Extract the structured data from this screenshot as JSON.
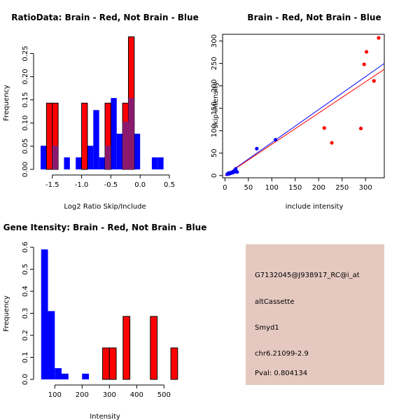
{
  "colors": {
    "brain": "#ff0000",
    "not_brain": "#0000ff",
    "overlap": "#8b1a6e",
    "info_bg": "#e5c9c1",
    "pval": "#8b0000"
  },
  "chart_data": [
    {
      "id": "ratio_hist",
      "type": "bar",
      "title": "RatioData: Brain - Red, Not Brain - Blue",
      "xlabel": "Log2 Ratio Skip/Include",
      "ylabel": "Frequency",
      "xlim": [
        -1.7,
        0.5
      ],
      "ylim": [
        0,
        0.29
      ],
      "xticks": [
        "-1.5",
        "-1.0",
        "-0.5",
        "0.0",
        "0.5"
      ],
      "xtick_values": [
        -1.5,
        -1.0,
        -0.5,
        0.0,
        0.5
      ],
      "yticks": [
        "0.00",
        "0.05",
        "0.10",
        "0.15",
        "0.20",
        "0.25"
      ],
      "ytick_values": [
        0,
        0.05,
        0.1,
        0.15,
        0.2,
        0.25
      ],
      "bin_width": 0.1,
      "series": [
        {
          "name": "Not Brain",
          "color": "blue",
          "bins": [
            [
              -1.7,
              0.051
            ],
            [
              -1.5,
              0.051
            ],
            [
              -1.3,
              0.026
            ],
            [
              -1.1,
              0.026
            ],
            [
              -0.9,
              0.051
            ],
            [
              -0.8,
              0.128
            ],
            [
              -0.7,
              0.026
            ],
            [
              -0.6,
              0.051
            ],
            [
              -0.5,
              0.154
            ],
            [
              -0.4,
              0.077
            ],
            [
              -0.3,
              0.103
            ],
            [
              -0.2,
              0.154
            ],
            [
              -0.1,
              0.077
            ],
            [
              0.2,
              0.026
            ],
            [
              0.3,
              0.026
            ]
          ]
        },
        {
          "name": "Brain",
          "color": "red",
          "bins": [
            [
              -1.6,
              0.143
            ],
            [
              -1.5,
              0.143
            ],
            [
              -1.0,
              0.143
            ],
            [
              -0.6,
              0.143
            ],
            [
              -0.3,
              0.143
            ],
            [
              -0.2,
              0.286
            ]
          ]
        }
      ]
    },
    {
      "id": "scatter",
      "type": "scatter",
      "title": "Brain - Red, Not Brain - Blue",
      "xlabel": "include intensity",
      "ylabel": "skip intensity",
      "xlim": [
        -5,
        340
      ],
      "ylim": [
        -5,
        315
      ],
      "xticks": [
        "0",
        "50",
        "100",
        "150",
        "200",
        "250",
        "300"
      ],
      "xtick_values": [
        0,
        50,
        100,
        150,
        200,
        250,
        300
      ],
      "yticks": [
        "0",
        "50",
        "100",
        "150",
        "200",
        "250",
        "300"
      ],
      "ytick_values": [
        0,
        50,
        100,
        150,
        200,
        250,
        300
      ],
      "series": [
        {
          "name": "Not Brain",
          "color": "blue",
          "points": [
            [
              5,
              3
            ],
            [
              7,
              5
            ],
            [
              9,
              4
            ],
            [
              10,
              6
            ],
            [
              12,
              5
            ],
            [
              14,
              7
            ],
            [
              15,
              6
            ],
            [
              17,
              8
            ],
            [
              18,
              7
            ],
            [
              20,
              9
            ],
            [
              21,
              10
            ],
            [
              22,
              12
            ],
            [
              23,
              15
            ],
            [
              24,
              9
            ],
            [
              26,
              8
            ],
            [
              68,
              60
            ],
            [
              108,
              80
            ]
          ]
        },
        {
          "name": "Brain",
          "color": "red",
          "points": [
            [
              212,
              106
            ],
            [
              228,
              73
            ],
            [
              290,
              105
            ],
            [
              297,
              248
            ],
            [
              302,
              276
            ],
            [
              318,
              211
            ],
            [
              328,
              307
            ]
          ]
        }
      ],
      "fit_lines": [
        {
          "name": "Not Brain fit",
          "color": "blue",
          "from": [
            0,
            0
          ],
          "to": [
            340,
            250
          ]
        },
        {
          "name": "Brain fit",
          "color": "red",
          "from": [
            0,
            0
          ],
          "to": [
            340,
            237
          ]
        }
      ]
    },
    {
      "id": "intensity_hist",
      "type": "bar",
      "title": "Gene Itensity: Brain - Red, Not Brain - Blue",
      "xlabel": "Intensity",
      "ylabel": "Frequency",
      "xlim": [
        48,
        530
      ],
      "ylim": [
        0,
        0.61
      ],
      "xticks": [
        "100",
        "200",
        "300",
        "400",
        "500"
      ],
      "xtick_values": [
        100,
        200,
        300,
        400,
        500
      ],
      "yticks": [
        "0.0",
        "0.1",
        "0.2",
        "0.3",
        "0.4",
        "0.5",
        "0.6"
      ],
      "ytick_values": [
        0,
        0.1,
        0.2,
        0.3,
        0.4,
        0.5,
        0.6
      ],
      "bin_width": 25,
      "series": [
        {
          "name": "Not Brain",
          "color": "blue",
          "bins": [
            [
              50,
              0.59
            ],
            [
              75,
              0.31
            ],
            [
              100,
              0.051
            ],
            [
              125,
              0.026
            ],
            [
              200,
              0.026
            ]
          ]
        },
        {
          "name": "Brain",
          "color": "red",
          "bins": [
            [
              275,
              0.143
            ],
            [
              300,
              0.143
            ],
            [
              350,
              0.286
            ],
            [
              450,
              0.286
            ],
            [
              525,
              0.143
            ]
          ]
        }
      ]
    }
  ],
  "info_box": {
    "probe": "G7132045@J938917_RC@i_at",
    "event_type": "altCassette",
    "gene": "Smyd1",
    "location": "chr6.21099-2.9",
    "pval": "Pval: 0.804134"
  }
}
